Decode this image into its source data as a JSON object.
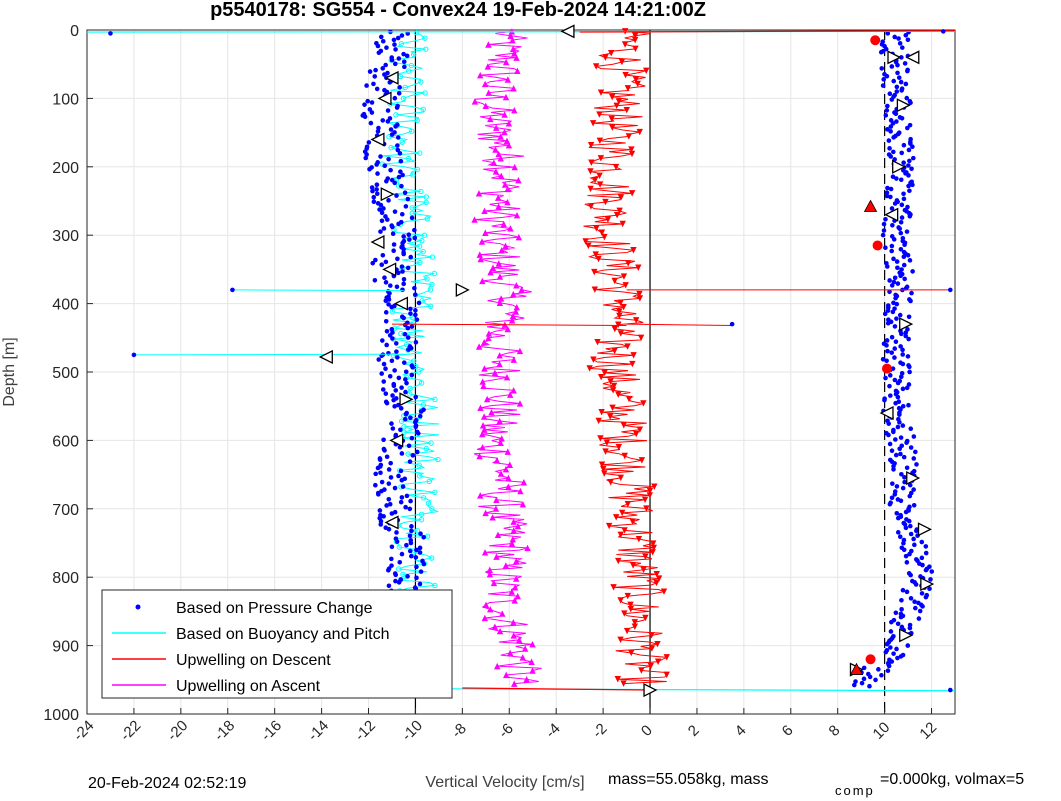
{
  "chart_data": {
    "type": "scatter",
    "title": "p5540178: SG554 - Convex24 19-Feb-2024 14:21:00Z",
    "xlabel": "Vertical Velocity [cm/s]",
    "ylabel": "Depth [m]",
    "xlim": [
      -24,
      13
    ],
    "ylim": [
      0,
      1000
    ],
    "y_reversed": true,
    "grid": true,
    "x_ticks": [
      -24,
      -22,
      -20,
      -18,
      -16,
      -14,
      -12,
      -10,
      -8,
      -6,
      -4,
      -2,
      0,
      2,
      4,
      6,
      8,
      10,
      12
    ],
    "y_ticks": [
      0,
      100,
      200,
      300,
      400,
      500,
      600,
      700,
      800,
      900,
      1000
    ],
    "legend_position": "bottom-left",
    "legend": [
      {
        "label": "Based on Pressure Change",
        "style": "dots",
        "color": "#0000ff"
      },
      {
        "label": "Based on Buoyancy and Pitch",
        "style": "line",
        "color": "#00ffff"
      },
      {
        "label": "Upwelling on Descent",
        "style": "line",
        "color": "#ff0000"
      },
      {
        "label": "Upwelling on Ascent",
        "style": "line",
        "color": "#ff00ff"
      }
    ],
    "reference_lines": [
      {
        "x": -10,
        "style": "solid",
        "color": "#000000"
      },
      {
        "x": 0,
        "style": "solid",
        "color": "#000000"
      },
      {
        "x": 10,
        "style": "dashed",
        "color": "#000000"
      }
    ],
    "series": [
      {
        "name": "Based on Pressure Change",
        "color": "#0000ff",
        "depths": [
          5,
          50,
          100,
          150,
          200,
          250,
          300,
          350,
          400,
          450,
          500,
          550,
          600,
          650,
          700,
          750,
          800,
          850,
          900,
          950
        ],
        "descent_x": [
          -11.0,
          -11.2,
          -11.4,
          -11.5,
          -11.3,
          -11.0,
          -10.8,
          -11.1,
          -10.6,
          -10.7,
          -10.9,
          -10.4,
          -10.6,
          -10.9,
          -11.0,
          -10.3,
          -10.4,
          -10.6,
          -10.3,
          -10.5
        ],
        "ascent_x": [
          10.5,
          10.4,
          10.6,
          10.5,
          10.8,
          10.6,
          10.4,
          10.6,
          10.6,
          10.5,
          10.5,
          10.5,
          10.7,
          10.8,
          10.7,
          11.3,
          11.5,
          11.0,
          10.6,
          9.2
        ]
      },
      {
        "name": "Based on Buoyancy and Pitch",
        "color": "#00ffff",
        "depths": [
          5,
          50,
          100,
          150,
          200,
          250,
          300,
          350,
          400,
          450,
          500,
          550,
          600,
          650,
          700,
          750,
          800,
          850,
          900,
          950
        ],
        "descent_x": [
          -10.6,
          -10.9,
          -10.8,
          -10.7,
          -11.1,
          -10.6,
          -10.5,
          -10.4,
          -10.4,
          -10.6,
          -10.3,
          -10.2,
          -10.0,
          -10.2,
          -10.1,
          -10.3,
          -10.3,
          -10.2,
          -10.0,
          -10.0
        ]
      },
      {
        "name": "Upwelling on Descent",
        "color": "#ff0000",
        "depths": [
          5,
          50,
          100,
          150,
          200,
          250,
          300,
          350,
          400,
          450,
          500,
          550,
          600,
          650,
          700,
          750,
          800,
          850,
          900,
          950
        ],
        "x": [
          -1.0,
          -1.2,
          -1.3,
          -1.5,
          -1.6,
          -1.7,
          -1.8,
          -1.5,
          -1.2,
          -1.4,
          -1.5,
          -1.2,
          -1.1,
          -0.9,
          -0.8,
          -0.6,
          -0.5,
          -0.5,
          -0.4,
          -0.3
        ]
      },
      {
        "name": "Upwelling on Ascent",
        "color": "#ff00ff",
        "depths": [
          5,
          50,
          100,
          150,
          200,
          250,
          300,
          350,
          400,
          450,
          500,
          550,
          600,
          650,
          700,
          750,
          800,
          850,
          900,
          950
        ],
        "x": [
          -6.2,
          -6.3,
          -6.8,
          -6.6,
          -6.1,
          -6.4,
          -6.6,
          -6.3,
          -5.9,
          -6.6,
          -6.3,
          -6.4,
          -6.8,
          -6.2,
          -6.4,
          -6.0,
          -6.3,
          -6.3,
          -5.6,
          -5.6
        ]
      }
    ],
    "outliers": [
      {
        "x": -23.0,
        "depth": 5
      },
      {
        "x": -22.0,
        "depth": 475
      },
      {
        "x": -17.8,
        "depth": 380
      },
      {
        "x": -13.8,
        "depth": 478
      },
      {
        "x": -8.0,
        "depth": 380
      },
      {
        "x": -3.5,
        "depth": 2
      },
      {
        "x": 12.5,
        "depth": 2
      },
      {
        "x": 12.8,
        "depth": 380
      },
      {
        "x": 3.5,
        "depth": 430
      },
      {
        "x": -9.5,
        "depth": 962
      },
      {
        "x": 12.8,
        "depth": 965
      }
    ],
    "annotations": [
      "20-Feb-2024 02:52:19",
      "mass=55.058kg, mass",
      "comp",
      "=0.000kg, volmax=5"
    ]
  }
}
